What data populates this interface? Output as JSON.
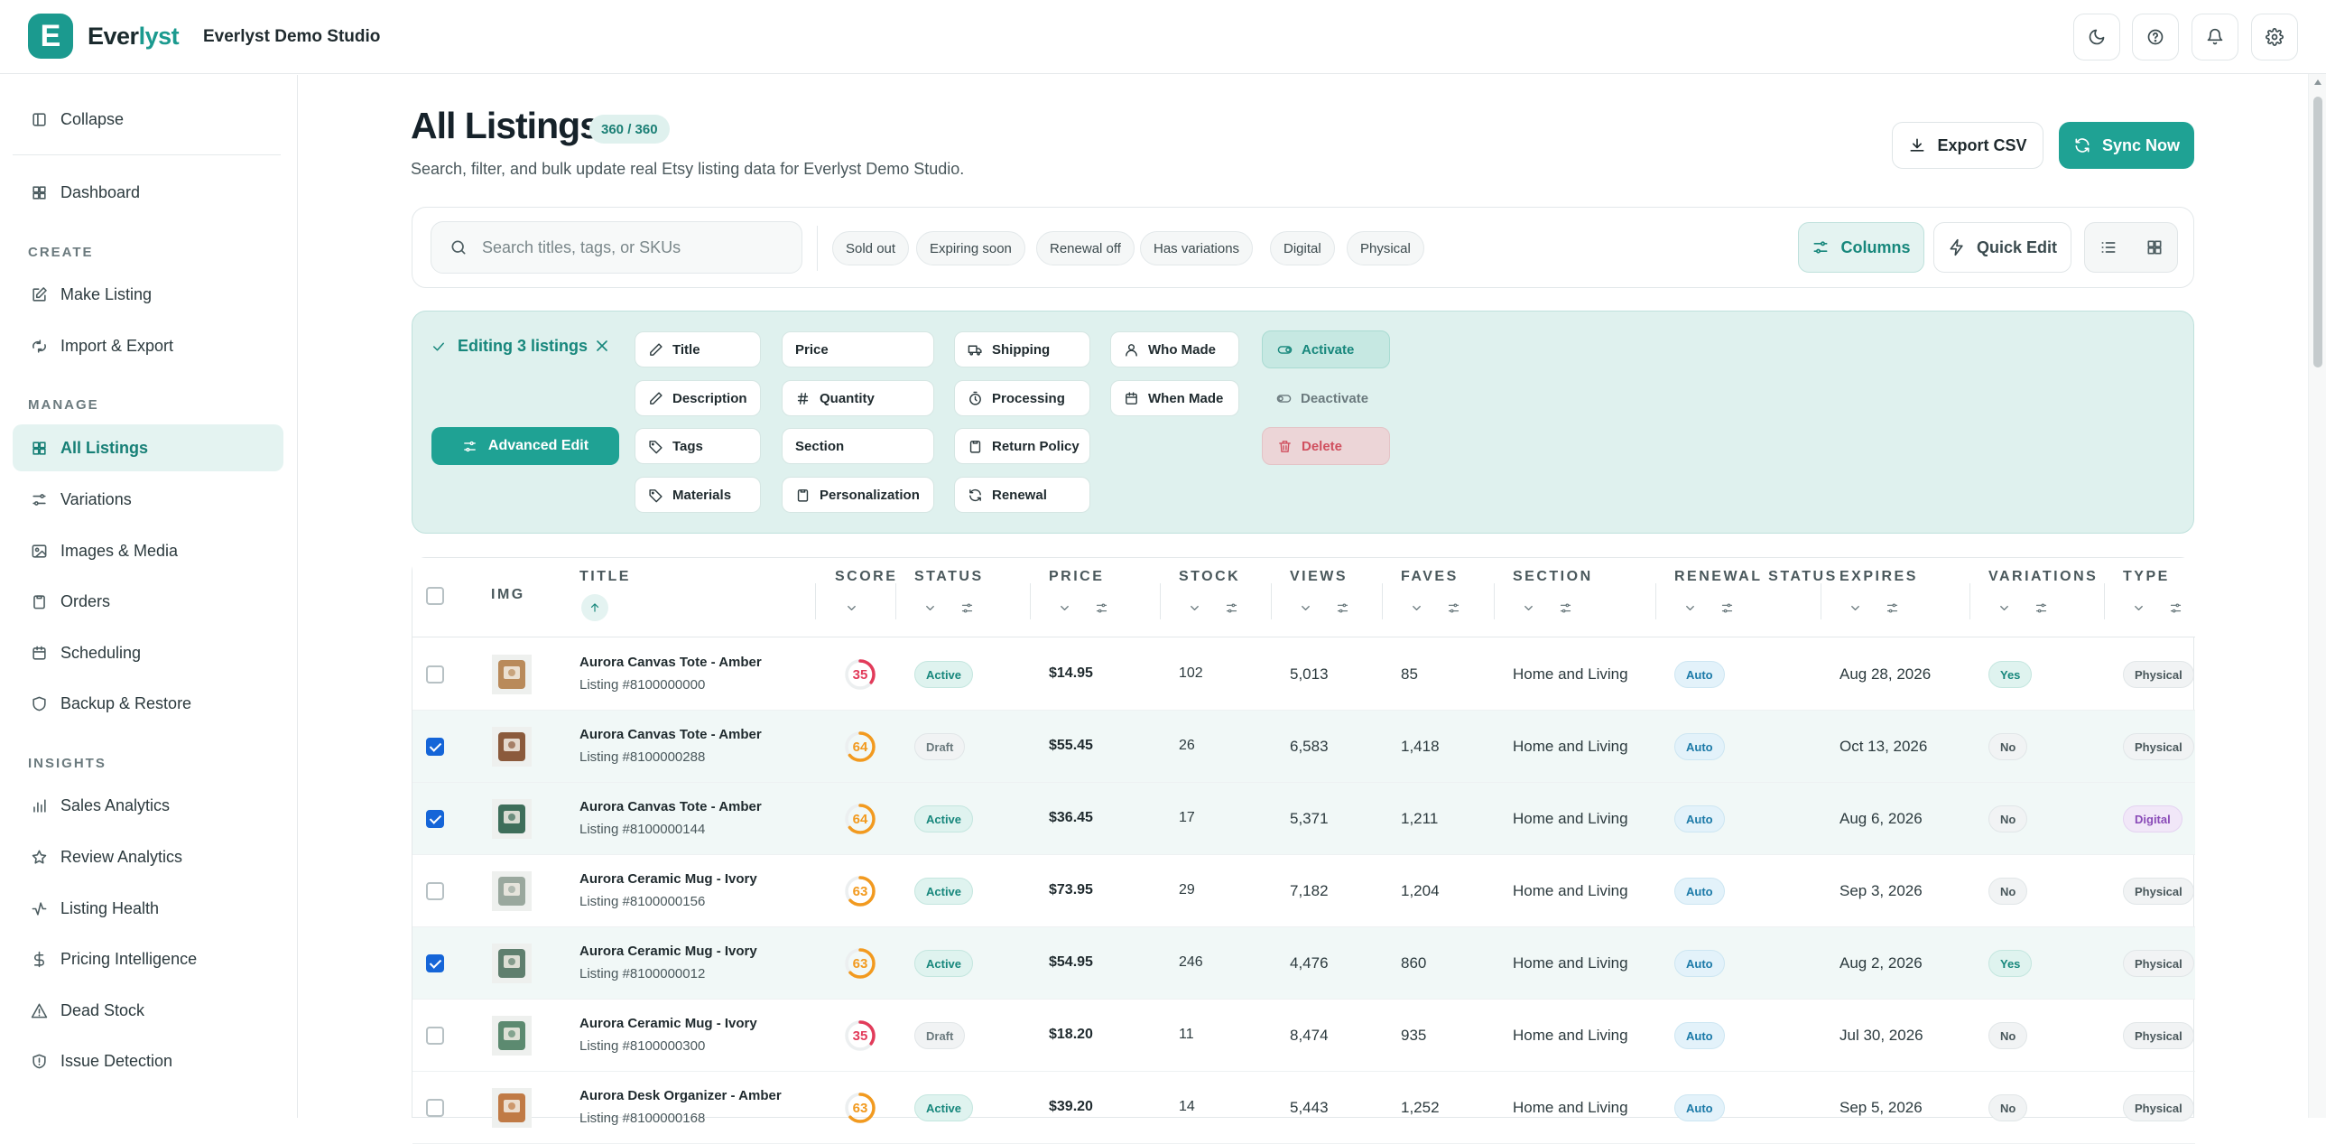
{
  "app": {
    "logo_letter": "E",
    "brand_prefix": "Ever",
    "brand_suffix": "lyst",
    "studio": "Everlyst Demo Studio"
  },
  "topbar_icons": [
    "moon-icon",
    "help-icon",
    "bell-icon",
    "settings-icon"
  ],
  "sidebar": {
    "collapse": "Collapse",
    "dashboard": "Dashboard",
    "sections": {
      "create": "CREATE",
      "manage": "MANAGE",
      "insights": "INSIGHTS"
    },
    "create_items": [
      {
        "label": "Make Listing",
        "icon": "edit-icon"
      },
      {
        "label": "Import & Export",
        "icon": "import-export-icon"
      }
    ],
    "manage_items": [
      {
        "label": "All Listings",
        "icon": "grid-icon",
        "active": true
      },
      {
        "label": "Variations",
        "icon": "sliders-icon"
      },
      {
        "label": "Images & Media",
        "icon": "image-icon"
      },
      {
        "label": "Orders",
        "icon": "clipboard-icon"
      },
      {
        "label": "Scheduling",
        "icon": "calendar-icon"
      },
      {
        "label": "Backup & Restore",
        "icon": "shield-icon"
      }
    ],
    "insights_items": [
      {
        "label": "Sales Analytics",
        "icon": "bar-chart-icon"
      },
      {
        "label": "Review Analytics",
        "icon": "star-icon"
      },
      {
        "label": "Listing Health",
        "icon": "activity-icon"
      },
      {
        "label": "Pricing Intelligence",
        "icon": "dollar-icon"
      },
      {
        "label": "Dead Stock",
        "icon": "warning-icon"
      },
      {
        "label": "Issue Detection",
        "icon": "shield-alert-icon"
      }
    ]
  },
  "header": {
    "title": "All Listings",
    "count": "360 / 360",
    "subtitle": "Search, filter, and bulk update real Etsy listing data for Everlyst Demo Studio.",
    "export_label": "Export CSV",
    "sync_label": "Sync Now"
  },
  "filters": {
    "search_placeholder": "Search titles, tags, or SKUs",
    "chips": [
      "Sold out",
      "Expiring soon",
      "Renewal off",
      "Has variations",
      "Digital",
      "Physical"
    ],
    "columns_label": "Columns",
    "quick_edit_label": "Quick Edit"
  },
  "bulk_edit": {
    "title": "Editing 3 listings",
    "advanced_label": "Advanced Edit",
    "fields": [
      {
        "label": "Title",
        "icon": "pencil-icon"
      },
      {
        "label": "Description",
        "icon": "pencil-icon"
      },
      {
        "label": "Tags",
        "icon": "tag-icon"
      },
      {
        "label": "Materials",
        "icon": "tag-icon"
      },
      {
        "label": "Price",
        "icon": ""
      },
      {
        "label": "Quantity",
        "icon": "hash-icon"
      },
      {
        "label": "Section",
        "icon": ""
      },
      {
        "label": "Personalization",
        "icon": "clipboard-icon"
      },
      {
        "label": "Shipping",
        "icon": "truck-icon"
      },
      {
        "label": "Processing",
        "icon": "timer-icon"
      },
      {
        "label": "Return Policy",
        "icon": "clipboard-icon"
      },
      {
        "label": "Renewal",
        "icon": "refresh-icon"
      },
      {
        "label": "Who Made",
        "icon": "user-icon"
      },
      {
        "label": "When Made",
        "icon": "calendar-icon"
      }
    ],
    "actions": {
      "activate": "Activate",
      "deactivate": "Deactivate",
      "delete": "Delete"
    }
  },
  "table": {
    "headers": {
      "img": "IMG",
      "title": "TITLE",
      "score": "SCORE",
      "status": "STATUS",
      "price": "PRICE",
      "stock": "STOCK",
      "views": "VIEWS",
      "faves": "FAVES",
      "section": "SECTION",
      "renewal": "RENEWAL STATUS",
      "expires": "EXPIRES",
      "variations": "VARIATIONS",
      "type": "TYPE"
    },
    "rows": [
      {
        "title": "Aurora Canvas Tote - Amber",
        "listing": "Listing #8100000000",
        "score": "35",
        "score_color": "#e23b5a",
        "status": "Active",
        "price": "$14.95",
        "stock": "102",
        "views": "5,013",
        "faves": "85",
        "section": "Home and Living",
        "renewal": "Auto",
        "expires": "Aug 28, 2026",
        "variations": "Yes",
        "type": "Physical",
        "selected": false,
        "thumb": "#b98a5a"
      },
      {
        "title": "Aurora Canvas Tote - Amber",
        "listing": "Listing #8100000288",
        "score": "64",
        "score_color": "#f29a1f",
        "status": "Draft",
        "price": "$55.45",
        "stock": "26",
        "views": "6,583",
        "faves": "1,418",
        "section": "Home and Living",
        "renewal": "Auto",
        "expires": "Oct 13, 2026",
        "variations": "No",
        "type": "Physical",
        "selected": true,
        "thumb": "#8b5a3c"
      },
      {
        "title": "Aurora Canvas Tote - Amber",
        "listing": "Listing #8100000144",
        "score": "64",
        "score_color": "#f29a1f",
        "status": "Active",
        "price": "$36.45",
        "stock": "17",
        "views": "5,371",
        "faves": "1,211",
        "section": "Home and Living",
        "renewal": "Auto",
        "expires": "Aug 6, 2026",
        "variations": "No",
        "type": "Digital",
        "selected": true,
        "thumb": "#3e6e5a"
      },
      {
        "title": "Aurora Ceramic Mug - Ivory",
        "listing": "Listing #8100000156",
        "score": "63",
        "score_color": "#f29a1f",
        "status": "Active",
        "price": "$73.95",
        "stock": "29",
        "views": "7,182",
        "faves": "1,204",
        "section": "Home and Living",
        "renewal": "Auto",
        "expires": "Sep 3, 2026",
        "variations": "No",
        "type": "Physical",
        "selected": false,
        "thumb": "#9aa89e"
      },
      {
        "title": "Aurora Ceramic Mug - Ivory",
        "listing": "Listing #8100000012",
        "score": "63",
        "score_color": "#f29a1f",
        "status": "Active",
        "price": "$54.95",
        "stock": "246",
        "views": "4,476",
        "faves": "860",
        "section": "Home and Living",
        "renewal": "Auto",
        "expires": "Aug 2, 2026",
        "variations": "Yes",
        "type": "Physical",
        "selected": true,
        "thumb": "#5f7f6e"
      },
      {
        "title": "Aurora Ceramic Mug - Ivory",
        "listing": "Listing #8100000300",
        "score": "35",
        "score_color": "#e23b5a",
        "status": "Draft",
        "price": "$18.20",
        "stock": "11",
        "views": "8,474",
        "faves": "935",
        "section": "Home and Living",
        "renewal": "Auto",
        "expires": "Jul 30, 2026",
        "variations": "No",
        "type": "Physical",
        "selected": false,
        "thumb": "#5c8a70"
      },
      {
        "title": "Aurora Desk Organizer - Amber",
        "listing": "Listing #8100000168",
        "score": "63",
        "score_color": "#f29a1f",
        "status": "Active",
        "price": "$39.20",
        "stock": "14",
        "views": "5,443",
        "faves": "1,252",
        "section": "Home and Living",
        "renewal": "Auto",
        "expires": "Sep 5, 2026",
        "variations": "No",
        "type": "Physical",
        "selected": false,
        "thumb": "#c07a45"
      }
    ]
  }
}
